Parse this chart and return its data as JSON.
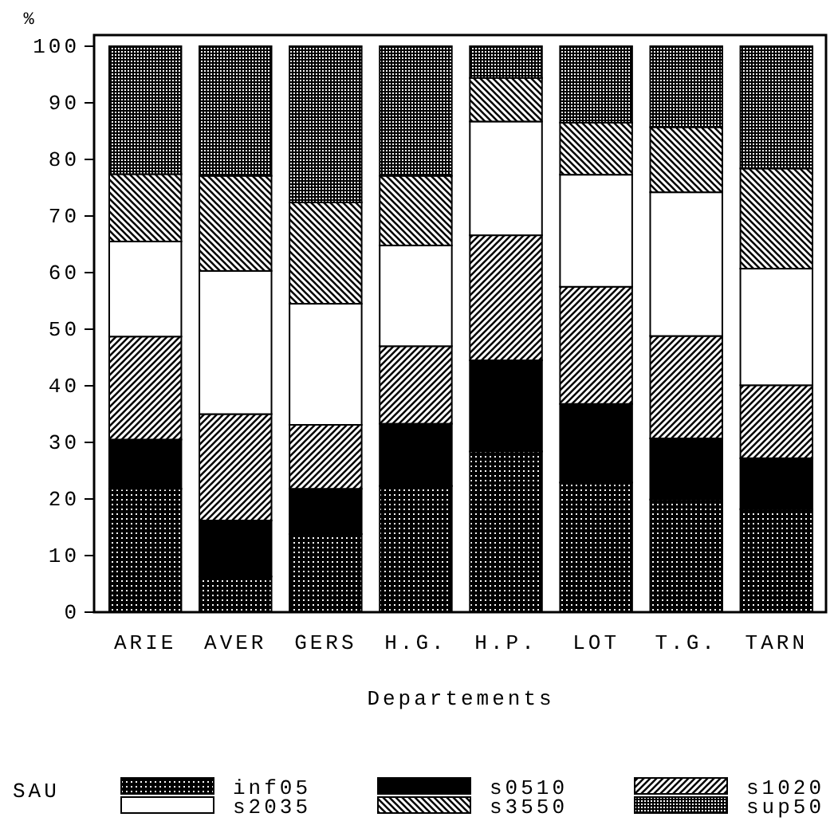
{
  "chart_data": {
    "type": "bar",
    "stacked": true,
    "xlabel": "Departements",
    "ylabel": "%",
    "legend_title": "SAU",
    "legend": "bottom",
    "categories": [
      "ARIE",
      "AVER",
      "GERS",
      "H.G.",
      "H.P.",
      "LOT",
      "T.G.",
      "TARN"
    ],
    "ylim": [
      0,
      100
    ],
    "yticks": [
      0,
      10,
      20,
      30,
      40,
      50,
      60,
      70,
      80,
      90,
      100
    ],
    "series": [
      {
        "name": "inf05",
        "color": "#000000",
        "values": [
          21.8,
          6.3,
          13.8,
          22.3,
          28.4,
          22.9,
          19.9,
          18.2
        ]
      },
      {
        "name": "s0510",
        "color": "#000000",
        "values": [
          8.7,
          9.9,
          8.0,
          11.0,
          16.1,
          13.9,
          10.8,
          9.0
        ]
      },
      {
        "name": "s1020",
        "color": "#000000",
        "values": [
          18.2,
          18.8,
          11.3,
          13.7,
          22.1,
          20.7,
          18.1,
          12.9
        ]
      },
      {
        "name": "s2035",
        "color": "#ffffff",
        "values": [
          16.8,
          25.3,
          21.4,
          17.8,
          20.1,
          19.8,
          25.4,
          20.6
        ]
      },
      {
        "name": "s3550",
        "color": "#000000",
        "values": [
          11.9,
          16.8,
          17.9,
          12.3,
          7.7,
          9.2,
          11.5,
          17.7
        ]
      },
      {
        "name": "sup50",
        "color": "#000000",
        "values": [
          22.6,
          22.9,
          27.6,
          22.9,
          5.6,
          13.5,
          14.3,
          21.6
        ]
      }
    ]
  }
}
